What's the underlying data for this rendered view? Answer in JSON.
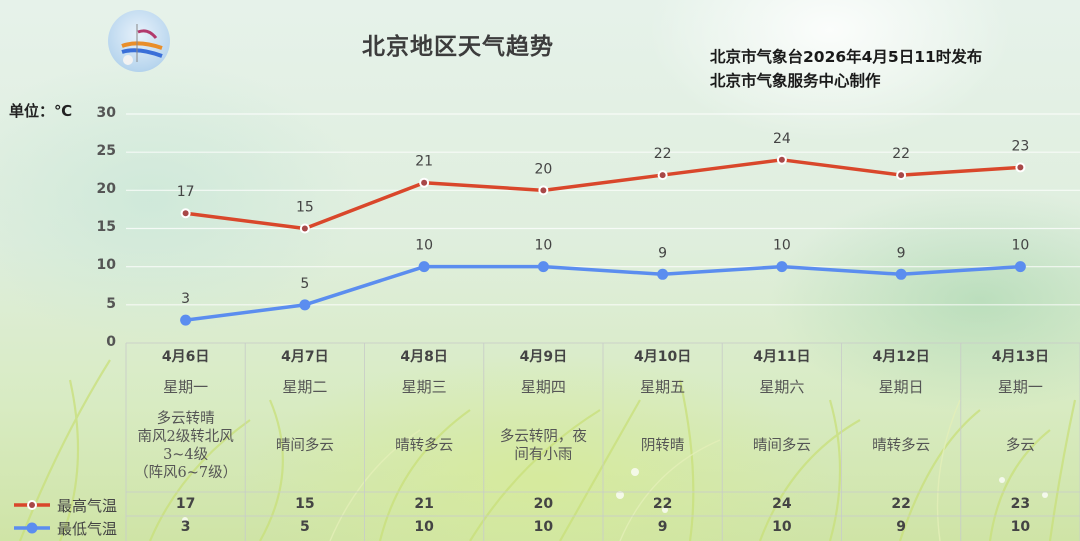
{
  "header": {
    "title": "北京地区天气趋势",
    "issuer_line1": "北京市气象台2026年4月5日11时发布",
    "issuer_line2": "北京市气象服务中心制作",
    "unit_label": "单位：℃",
    "logo": "beijing-meteorological-service-logo"
  },
  "axis": {
    "y_ticks": [
      "30",
      "25",
      "20",
      "15",
      "10",
      "5",
      "0"
    ]
  },
  "days": [
    {
      "date": "4月6日",
      "weekday": "星期一",
      "weather": [
        "多云转晴",
        "南风2级转北风",
        "3~4级",
        "（阵风6~7级）"
      ],
      "high": "17",
      "low": "3"
    },
    {
      "date": "4月7日",
      "weekday": "星期二",
      "weather": [
        "晴间多云"
      ],
      "high": "15",
      "low": "5"
    },
    {
      "date": "4月8日",
      "weekday": "星期三",
      "weather": [
        "晴转多云"
      ],
      "high": "21",
      "low": "10"
    },
    {
      "date": "4月9日",
      "weekday": "星期四",
      "weather": [
        "多云转阴，夜",
        "间有小雨"
      ],
      "high": "20",
      "low": "10"
    },
    {
      "date": "4月10日",
      "weekday": "星期五",
      "weather": [
        "阴转晴"
      ],
      "high": "22",
      "low": "9"
    },
    {
      "date": "4月11日",
      "weekday": "星期六",
      "weather": [
        "晴间多云"
      ],
      "high": "24",
      "low": "10"
    },
    {
      "date": "4月12日",
      "weekday": "星期日",
      "weather": [
        "晴转多云"
      ],
      "high": "22",
      "low": "9"
    },
    {
      "date": "4月13日",
      "weekday": "星期一",
      "weather": [
        "多云"
      ],
      "high": "23",
      "low": "10"
    }
  ],
  "legend": {
    "high_label": "最高气温",
    "low_label": "最低气温"
  },
  "colors": {
    "high": "#d9472b",
    "high_marker": "#a84848",
    "low": "#5b8def",
    "grid": "#ffffff"
  },
  "chart_data": {
    "type": "line",
    "title": "北京地区天气趋势",
    "categories": [
      "4月6日",
      "4月7日",
      "4月8日",
      "4月9日",
      "4月10日",
      "4月11日",
      "4月12日",
      "4月13日"
    ],
    "series": [
      {
        "name": "最高气温",
        "values": [
          17,
          15,
          21,
          20,
          22,
          24,
          22,
          23
        ],
        "color": "#d9472b"
      },
      {
        "name": "最低气温",
        "values": [
          3,
          5,
          10,
          10,
          9,
          10,
          9,
          10
        ],
        "color": "#5b8def"
      }
    ],
    "xlabel": "",
    "ylabel": "单位：℃",
    "ylim": [
      0,
      30
    ],
    "yticks": [
      0,
      5,
      10,
      15,
      20,
      25,
      30
    ],
    "grid": true,
    "legend_position": "bottom-left (in data table)",
    "data_labels": true
  }
}
